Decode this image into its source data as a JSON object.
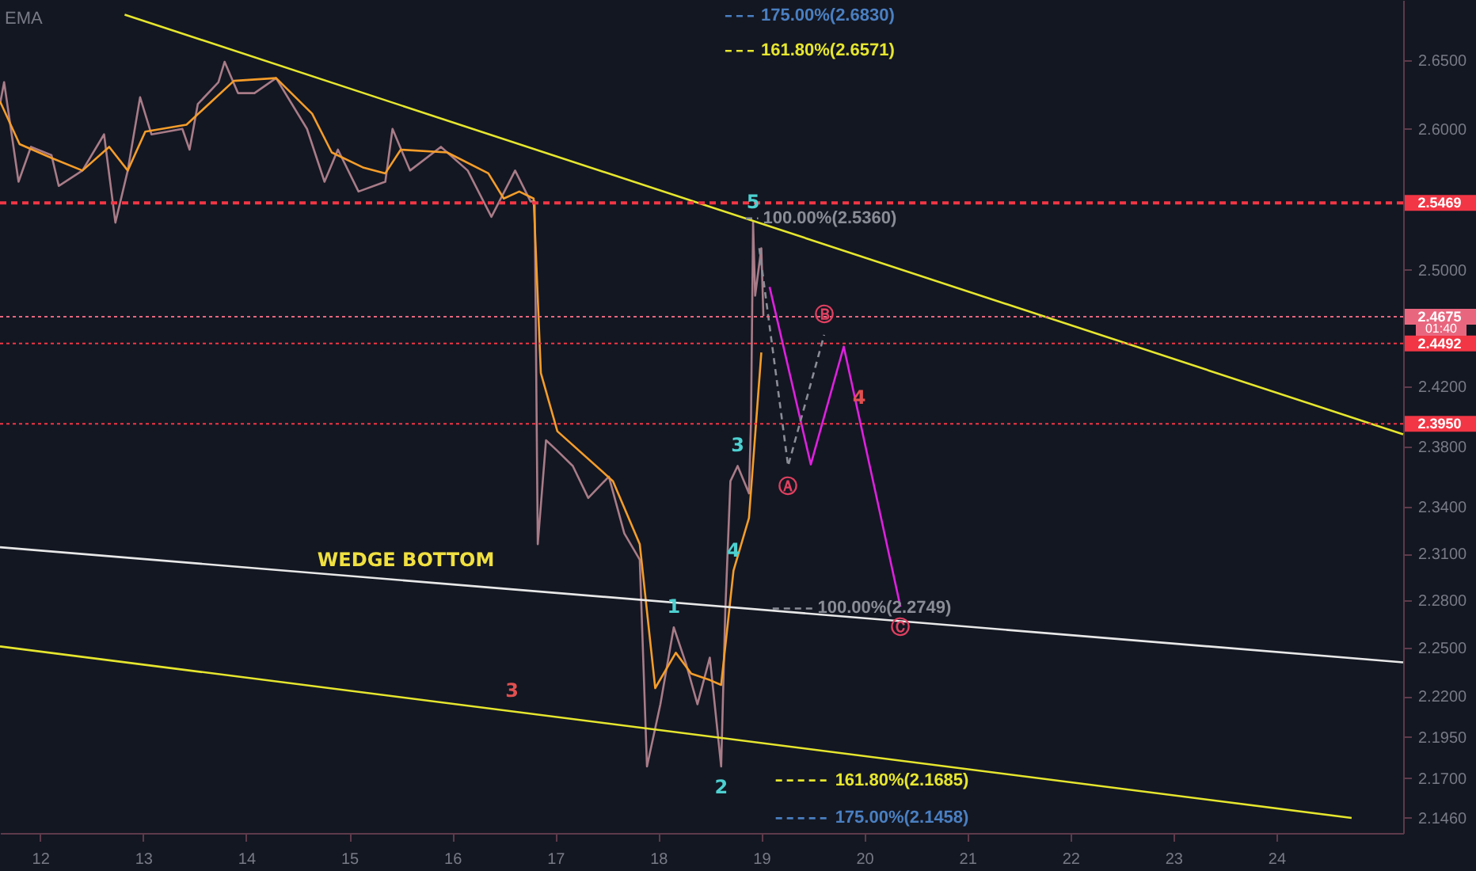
{
  "chart_data": {
    "type": "line",
    "log": "y",
    "xlim": [
      11.61,
      25.23
    ],
    "xticks": [
      12,
      13,
      14,
      15,
      16,
      17,
      18,
      19,
      20,
      21,
      22,
      23,
      24
    ],
    "ylim": [
      2.137,
      2.695
    ],
    "yticks": [
      {
        "value": 2.65,
        "label": "2.6500"
      },
      {
        "value": 2.6,
        "label": "2.6000"
      },
      {
        "value": 2.5,
        "label": "2.5000"
      },
      {
        "value": 2.42,
        "label": "2.4200"
      },
      {
        "value": 2.38,
        "label": "2.3800"
      },
      {
        "value": 2.34,
        "label": "2.3400"
      },
      {
        "value": 2.31,
        "label": "2.3100"
      },
      {
        "value": 2.28,
        "label": "2.2800"
      },
      {
        "value": 2.25,
        "label": "2.2500"
      },
      {
        "value": 2.22,
        "label": "2.2200"
      },
      {
        "value": 2.195,
        "label": "2.1950"
      },
      {
        "value": 2.17,
        "label": "2.1700"
      },
      {
        "value": 2.146,
        "label": "2.1460"
      }
    ],
    "series": [
      {
        "color": "#a87c88",
        "x": [
          11.61,
          11.65,
          11.79,
          11.91,
          12.11,
          12.18,
          12.41,
          12.62,
          12.73,
          12.85,
          12.97,
          13.08,
          13.38,
          13.45,
          13.53,
          13.73,
          13.79,
          13.92,
          14.08,
          14.29,
          14.59,
          14.76,
          14.89,
          15.09,
          15.35,
          15.42,
          15.59,
          15.89,
          16.15,
          16.38,
          16.61,
          16.76,
          16.8,
          16.83,
          16.91,
          17.02,
          17.17,
          17.32,
          17.52,
          17.67,
          17.82,
          17.89,
          18.02,
          18.15,
          18.27,
          18.38,
          18.5,
          18.61,
          18.65,
          18.7,
          18.77,
          18.88,
          18.9,
          18.92,
          18.94,
          19.0,
          19.02
        ],
        "values": [
          2.618,
          2.634,
          2.562,
          2.587,
          2.581,
          2.559,
          2.57,
          2.596,
          2.533,
          2.57,
          2.623,
          2.596,
          2.6,
          2.585,
          2.618,
          2.634,
          2.649,
          2.626,
          2.626,
          2.637,
          2.6,
          2.562,
          2.585,
          2.555,
          2.562,
          2.6,
          2.57,
          2.587,
          2.57,
          2.537,
          2.57,
          2.548,
          2.548,
          2.316,
          2.384,
          2.377,
          2.367,
          2.346,
          2.36,
          2.323,
          2.306,
          2.177,
          2.215,
          2.263,
          2.24,
          2.215,
          2.244,
          2.177,
          2.273,
          2.357,
          2.367,
          2.349,
          2.398,
          2.533,
          2.482,
          2.515,
          2.468
        ]
      },
      {
        "color": "#f59d2a",
        "x": [
          11.61,
          11.8,
          12.11,
          12.41,
          12.67,
          12.85,
          13.02,
          13.42,
          13.88,
          14.29,
          14.64,
          14.83,
          15.14,
          15.35,
          15.5,
          15.95,
          16.35,
          16.5,
          16.65,
          16.79,
          16.86,
          17.02,
          17.56,
          17.82,
          17.97,
          18.17,
          18.32,
          18.5,
          18.61,
          18.73,
          18.88,
          19.0
        ],
        "values": [
          2.62,
          2.589,
          2.579,
          2.57,
          2.587,
          2.57,
          2.598,
          2.603,
          2.635,
          2.637,
          2.611,
          2.583,
          2.572,
          2.568,
          2.585,
          2.583,
          2.568,
          2.55,
          2.555,
          2.55,
          2.429,
          2.39,
          2.357,
          2.316,
          2.225,
          2.247,
          2.234,
          2.23,
          2.227,
          2.299,
          2.333,
          2.443
        ]
      },
      {
        "color": "#e6e62e",
        "x": [
          12.82,
          25.23
        ],
        "values": [
          2.684,
          2.388
        ]
      },
      {
        "color": "#e8e8e8",
        "x": [
          11.61,
          25.23
        ],
        "values": [
          2.314,
          2.241
        ]
      },
      {
        "color": "#e6e62e",
        "x": [
          11.61,
          24.73
        ],
        "values": [
          2.251,
          2.146
        ]
      },
      {
        "color": "#e020e0",
        "x": [
          19.08,
          19.48,
          19.8,
          20.35
        ],
        "values": [
          2.488,
          2.368,
          2.447,
          2.276
        ]
      },
      {
        "color": "#8a8d96",
        "line_style": "dashed",
        "x": [
          18.98,
          19.26,
          19.61
        ],
        "values": [
          2.515,
          2.367,
          2.455
        ]
      },
      {
        "name": "175.00%(2.6830)",
        "color": "#4a7fc1",
        "line_style": "dashed",
        "x": [
          18.65,
          18.95
        ],
        "values": [
          2.683,
          2.683
        ]
      },
      {
        "name": "161.80%(2.6571)",
        "color": "#e6e62e",
        "line_style": "dashed",
        "x": [
          18.65,
          18.95
        ],
        "values": [
          2.6571,
          2.6571
        ]
      },
      {
        "name": "100.00%(2.5360)",
        "color": "#8a8d96",
        "line_style": "dashed",
        "x": [
          18.85,
          18.97
        ],
        "values": [
          2.536,
          2.536
        ]
      },
      {
        "name": "100.00%(2.2749)",
        "color": "#8a8d96",
        "line_style": "dashed",
        "x": [
          19.11,
          19.5
        ],
        "values": [
          2.2749,
          2.2749
        ]
      },
      {
        "name": "161.80%(2.1685)",
        "color": "#e6e62e",
        "line_style": "dashed",
        "x": [
          19.14,
          19.67
        ],
        "values": [
          2.1685,
          2.1685
        ]
      },
      {
        "name": "175.00%(2.1458)",
        "color": "#4a7fc1",
        "line_style": "dashed",
        "x": [
          19.14,
          19.67
        ],
        "values": [
          2.1458,
          2.1458
        ]
      }
    ],
    "ref_lines": [
      {
        "axis": "y",
        "value": 2.5469,
        "label": "2.5469",
        "color": "#f23645",
        "line_style": "dashed"
      },
      {
        "axis": "y",
        "value": 2.4675,
        "label": "2.4675",
        "color": "#e8677f",
        "line_style": "dotted"
      },
      {
        "axis": "y",
        "value": 2.4492,
        "label": "2.4492",
        "color": "#f23645",
        "line_style": "dotted"
      },
      {
        "axis": "y",
        "value": 2.395,
        "label": "2.3950",
        "color": "#f23645",
        "line_style": "dotted"
      }
    ],
    "annotations": [
      "EMA",
      "01:40",
      {
        "text": "5",
        "x": 18.92,
        "y": 2.533
      },
      {
        "text": "3",
        "x": 18.77,
        "y": 2.367
      },
      {
        "text": "1",
        "x": 18.15,
        "y": 2.263
      },
      {
        "text": "4",
        "x": 18.73,
        "y": 2.299
      },
      {
        "text": "2",
        "x": 18.61,
        "y": 2.177
      },
      {
        "text": "3",
        "x": 16.58,
        "y": 2.2107
      },
      {
        "text": "4",
        "x": 19.95,
        "y": 2.399
      },
      {
        "text": "Ⓐ",
        "x": 19.26,
        "y": 2.367
      },
      {
        "text": "Ⓑ",
        "x": 19.61,
        "y": 2.455
      },
      {
        "text": "Ⓒ",
        "x": 20.35,
        "y": 2.276
      },
      {
        "text": "WEDGE BOTTOM",
        "x": 15.55,
        "y": 2.2926
      }
    ]
  }
}
